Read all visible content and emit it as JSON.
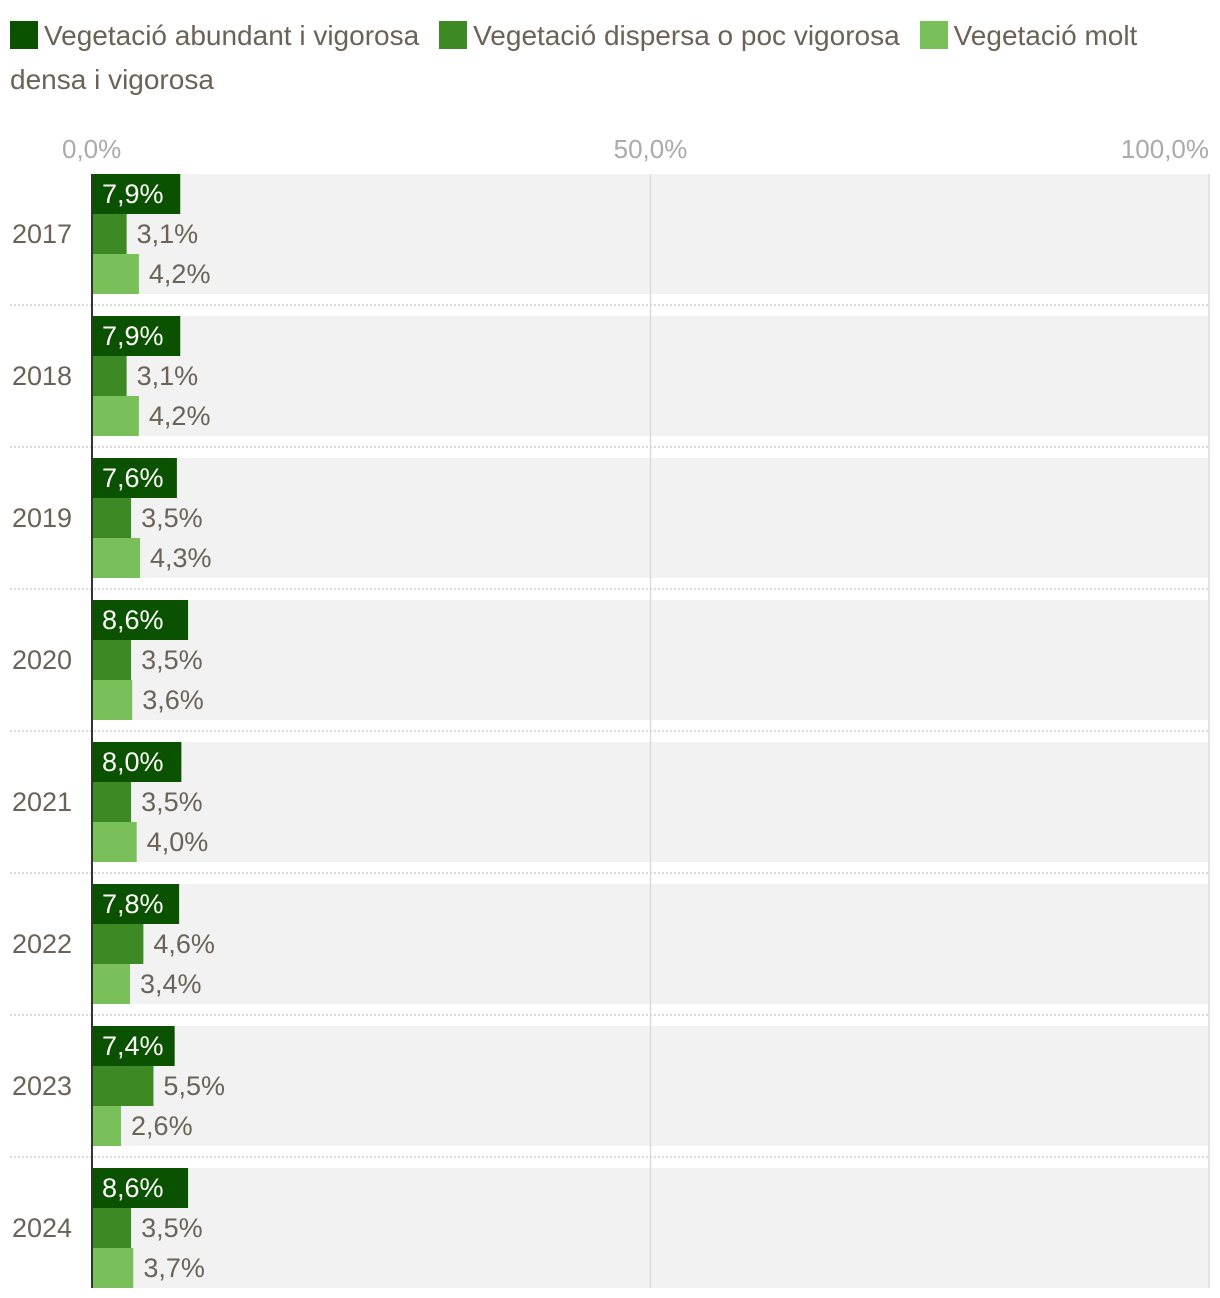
{
  "chart_data": {
    "type": "bar",
    "orientation": "horizontal",
    "categories": [
      "2017",
      "2018",
      "2019",
      "2020",
      "2021",
      "2022",
      "2023",
      "2024"
    ],
    "series": [
      {
        "name": "Vegetació abundant i vigorosa",
        "color": "#0b5200",
        "values": [
          7.9,
          7.9,
          7.6,
          8.6,
          8.0,
          7.8,
          7.4,
          8.6
        ],
        "labels": [
          "7,9%",
          "7,9%",
          "7,6%",
          "8,6%",
          "8,0%",
          "7,8%",
          "7,4%",
          "8,6%"
        ]
      },
      {
        "name": "Vegetació dispersa o poc vigorosa",
        "color": "#3d8a25",
        "values": [
          3.1,
          3.1,
          3.5,
          3.5,
          3.5,
          4.6,
          5.5,
          3.5
        ],
        "labels": [
          "3,1%",
          "3,1%",
          "3,5%",
          "3,5%",
          "3,5%",
          "4,6%",
          "5,5%",
          "3,5%"
        ]
      },
      {
        "name": "Vegetació molt densa i vigorosa",
        "color": "#79c05a",
        "values": [
          4.2,
          4.2,
          4.3,
          3.6,
          4.0,
          3.4,
          2.6,
          3.7
        ],
        "labels": [
          "4,2%",
          "4,2%",
          "4,3%",
          "3,6%",
          "4,0%",
          "3,4%",
          "2,6%",
          "3,7%"
        ]
      }
    ],
    "xlim": [
      0,
      100
    ],
    "xticks": [
      0,
      50,
      100
    ],
    "xtick_labels": [
      "0,0%",
      "50,0%",
      "100,0%"
    ],
    "legend_position": "top",
    "grid": true
  }
}
